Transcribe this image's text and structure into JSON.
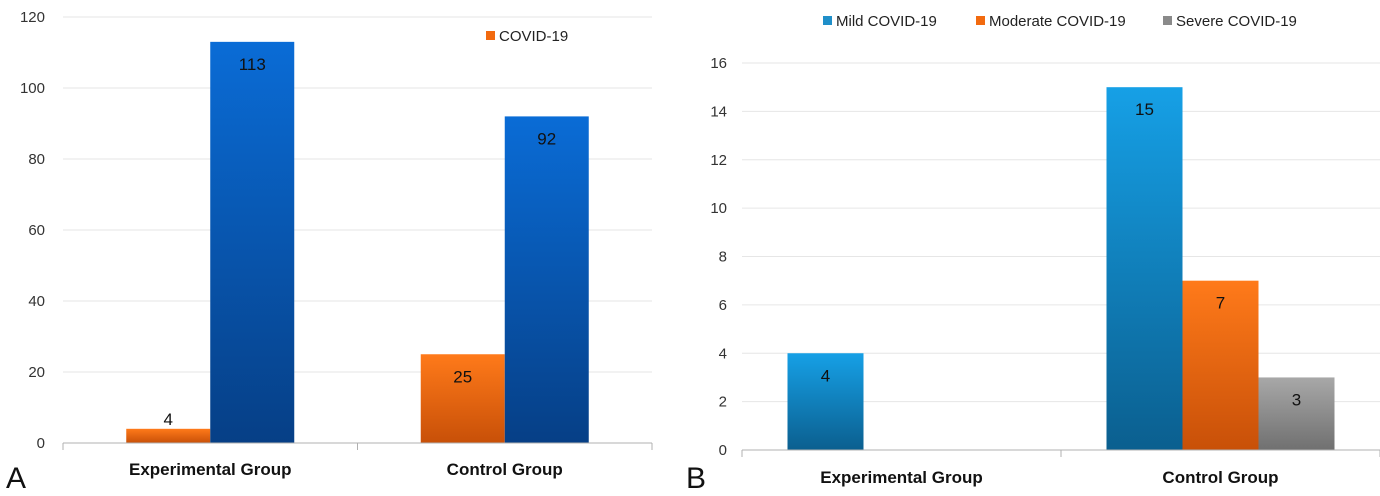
{
  "colors": {
    "covid_orange": "#f26a0f",
    "blue_dark": "#0b57b5",
    "mild_blue": "#1f8fc9",
    "moderate_orange": "#f26a0f",
    "severe_gray": "#8a8a8a",
    "axis": "#b0b0b0",
    "grid": "#e6e6e6"
  },
  "chart_data": [
    {
      "panel_label": "A",
      "type": "bar",
      "categories": [
        "Experimental Group",
        "Control Group"
      ],
      "series": [
        {
          "name": "COVID-19",
          "values": [
            4,
            25
          ],
          "color": "#f26a0f"
        },
        {
          "values": [
            113,
            92
          ],
          "color": "#0b57b5"
        }
      ],
      "ylim": [
        0,
        120
      ],
      "yticks": [
        0,
        20,
        40,
        60,
        80,
        100,
        120
      ],
      "legend_position": "top-right",
      "grid": true
    },
    {
      "panel_label": "B",
      "type": "bar",
      "categories": [
        "Experimental Group",
        "Control Group"
      ],
      "series": [
        {
          "name": "Mild COVID-19",
          "values": [
            4,
            15
          ],
          "color": "#1f8fc9"
        },
        {
          "name": "Moderate COVID-19",
          "values": [
            null,
            7
          ],
          "color": "#f26a0f"
        },
        {
          "name": "Severe COVID-19",
          "values": [
            null,
            3
          ],
          "color": "#8a8a8a"
        }
      ],
      "ylim": [
        0,
        16
      ],
      "yticks": [
        0,
        2,
        4,
        6,
        8,
        10,
        12,
        14,
        16
      ],
      "legend_position": "top",
      "grid": true
    }
  ]
}
